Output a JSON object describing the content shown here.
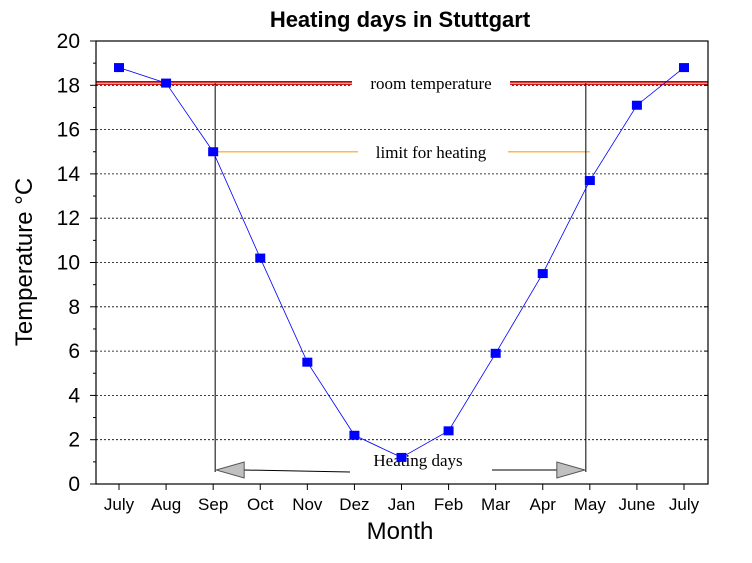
{
  "chart_data": {
    "type": "line",
    "title": "Heating days in Stuttgart",
    "xlabel": "Month",
    "ylabel": "Temperature °C",
    "categories": [
      "July",
      "Aug",
      "Sep",
      "Oct",
      "Nov",
      "Dez",
      "Jan",
      "Feb",
      "Mar",
      "Apr",
      "May",
      "June",
      "July"
    ],
    "series": [
      {
        "values": [
          18.8,
          18.1,
          15.0,
          10.2,
          5.5,
          2.2,
          1.2,
          2.4,
          5.9,
          9.5,
          13.7,
          17.1,
          18.8
        ]
      }
    ],
    "ylim": [
      0,
      20
    ],
    "yticks": [
      0,
      2,
      4,
      6,
      8,
      10,
      12,
      14,
      16,
      18,
      20
    ],
    "grid": "horizontal dotted",
    "colors": {
      "series": "#0000ff",
      "room_line": "#cc0000",
      "heating_line": "#ffb84d",
      "arrow": "#c0c0c0"
    },
    "reference_lines": [
      {
        "label": "room temperature",
        "y": 18.1
      },
      {
        "label": "limit for heating",
        "y": 15.0
      }
    ],
    "heating_period": {
      "label": "Heating days",
      "from": "Sep",
      "to": "May"
    }
  }
}
